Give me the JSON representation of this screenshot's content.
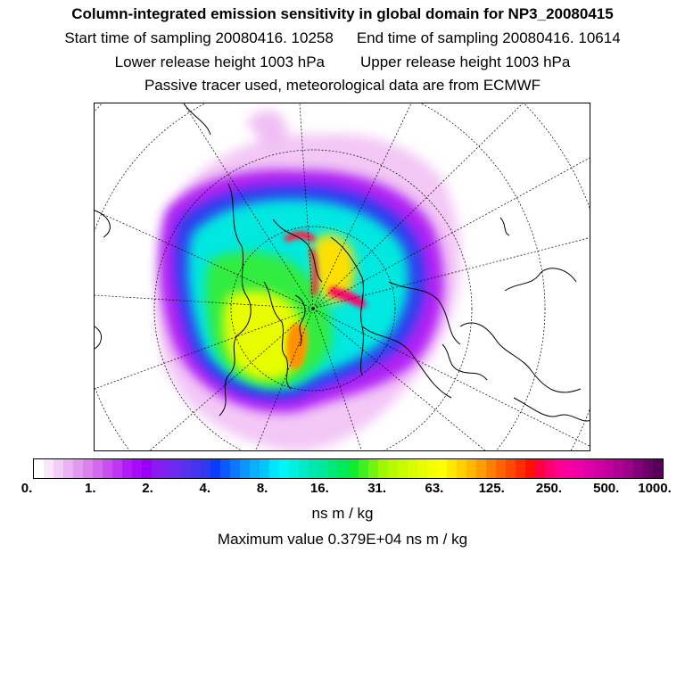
{
  "header": {
    "title": "Column-integrated emission sensitivity in global domain for NP3_20080415",
    "start_time": "Start time of sampling 20080416. 10258",
    "end_time": "End time of sampling 20080416. 10614",
    "lower_release": "Lower release height 1003 hPa",
    "upper_release": "Upper release height 1003 hPa",
    "tracer_note": "Passive tracer used, meteorological data are from ECMWF"
  },
  "map": {
    "projection": "polar stereographic, North Pole",
    "field": "column-integrated emission sensitivity"
  },
  "colorbar": {
    "ticks": [
      "0.",
      "1.",
      "2.",
      "4.",
      "8.",
      "16.",
      "31.",
      "63.",
      "125.",
      "250.",
      "500.",
      "1000."
    ],
    "colors": [
      "#ffffff",
      "#f8e6fb",
      "#f2cdf8",
      "#ebb3f4",
      "#e39af1",
      "#db82ed",
      "#d26af0",
      "#c94ff2",
      "#be35f4",
      "#b21bf6",
      "#a60cf7",
      "#9a00f8",
      "#8c18f2",
      "#7c22f0",
      "#6a2aef",
      "#5830ee",
      "#4434ef",
      "#3038f0",
      "#0a3cff",
      "#0a5aff",
      "#0a78ff",
      "#0a96ff",
      "#0ab0ff",
      "#00c8ff",
      "#00e6ff",
      "#00f6f6",
      "#00f0e0",
      "#00ecc8",
      "#00e8b0",
      "#00e898",
      "#00e878",
      "#00ea58",
      "#10ec30",
      "#40f020",
      "#70f410",
      "#a0f800",
      "#b8f800",
      "#c8fa00",
      "#d8fc00",
      "#e8fe00",
      "#f4ff00",
      "#ffff00",
      "#ffe800",
      "#ffd000",
      "#ffb800",
      "#ff9c00",
      "#ff8000",
      "#ff6400",
      "#ff4800",
      "#ff2c00",
      "#ff1000",
      "#ff0040",
      "#ff0070",
      "#ff0090",
      "#f800a0",
      "#ee00a8",
      "#e000a8",
      "#d000a4",
      "#c0009c",
      "#ae0094",
      "#9a0088",
      "#84007a",
      "#6c006a",
      "#560058"
    ],
    "units": "ns m / kg"
  },
  "max_value": "Maximum value  0.379E+04 ns m / kg"
}
